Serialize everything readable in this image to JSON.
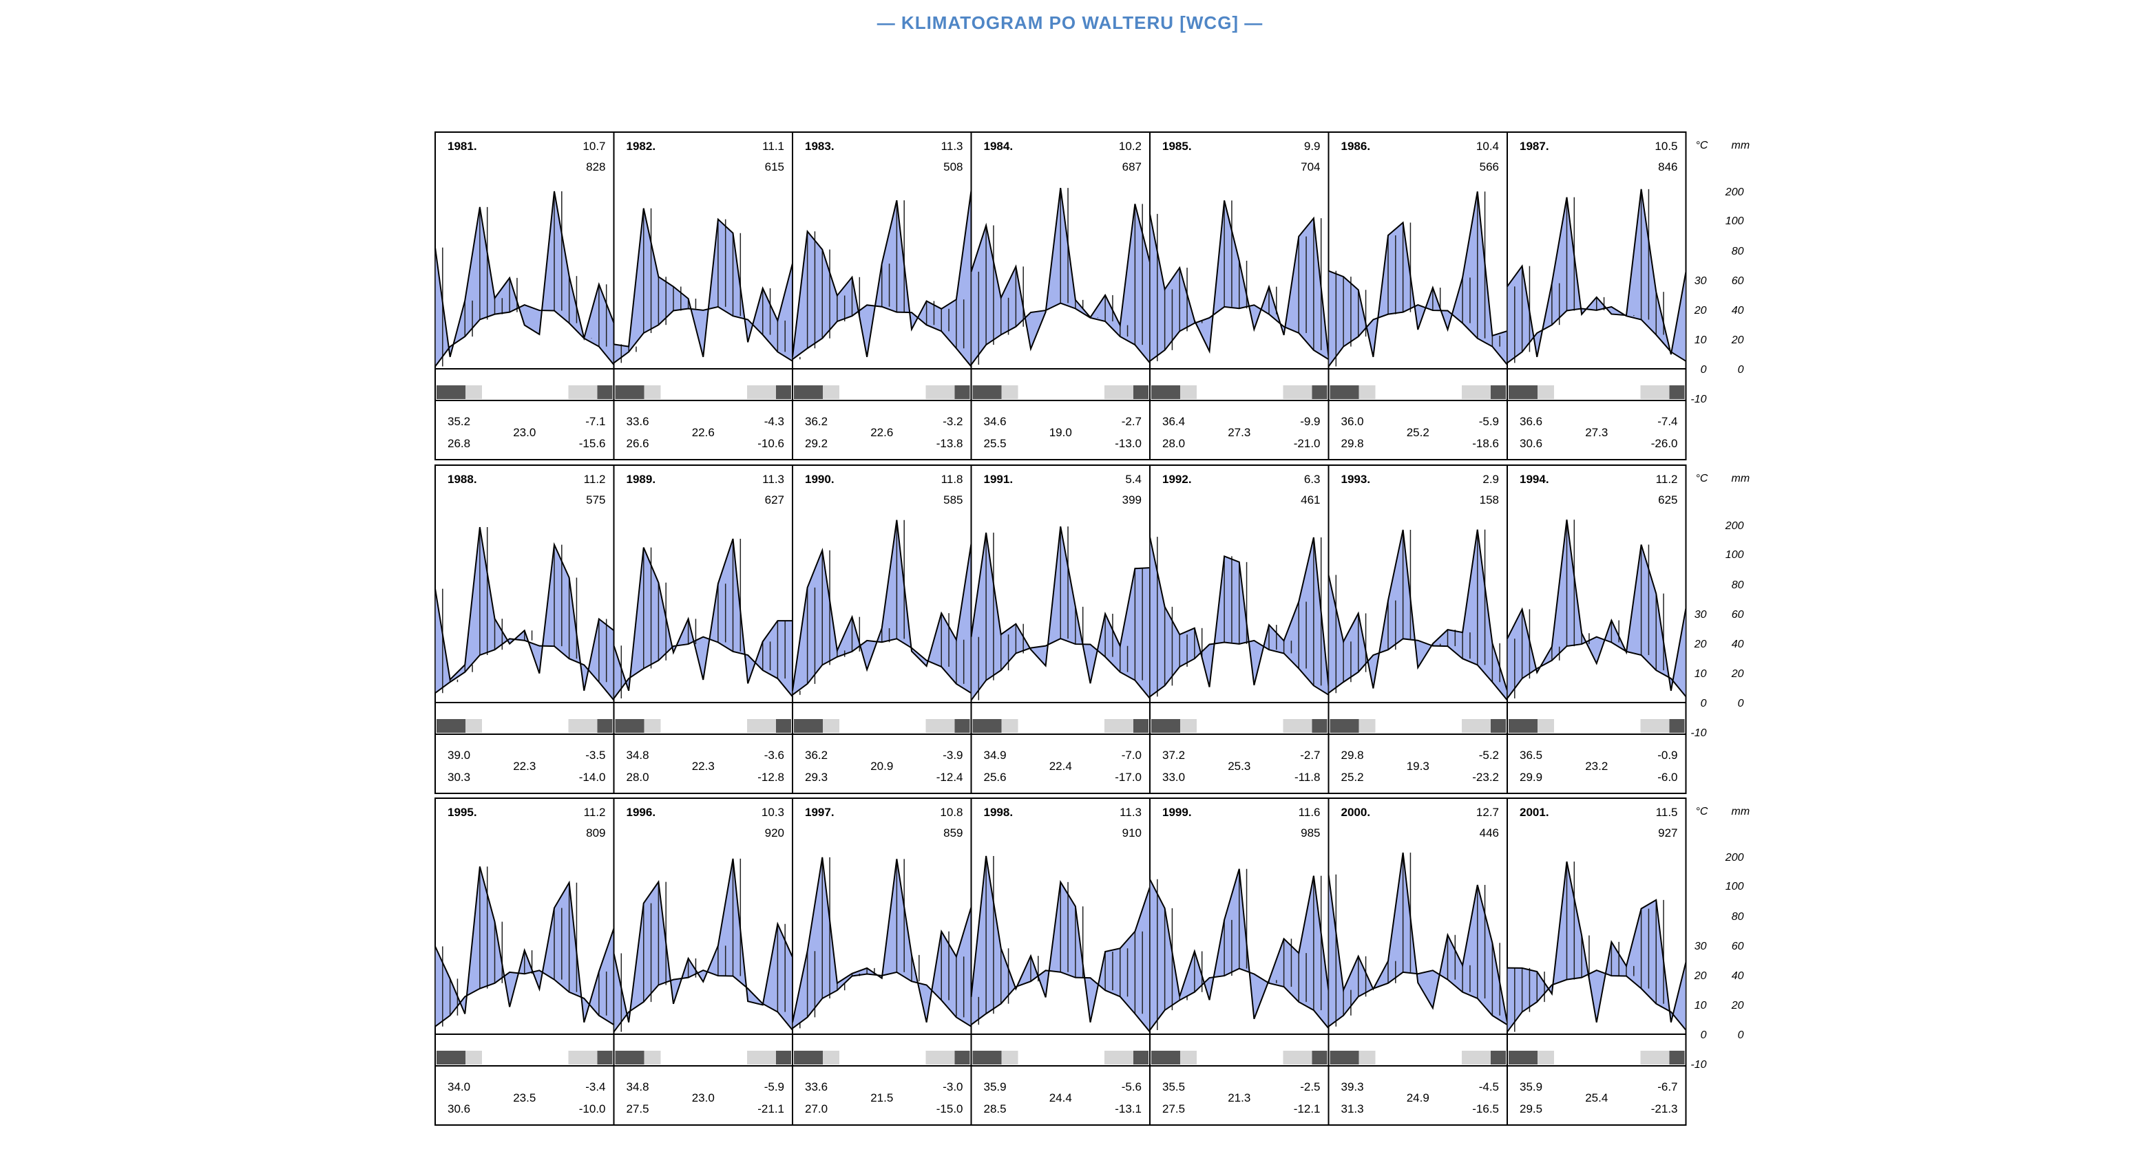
{
  "page": {
    "title": "— KLIMATOGRAM PO WALTERU [WCG] —"
  },
  "colors": {
    "humid": "#a4b3ee",
    "arid": "#ec0e0e",
    "semiarid": "#ecf03a",
    "perhumid": "#000000",
    "frost_absolute": "#555555",
    "frost_probable": "#d6d6d6",
    "title": "#4f86c6"
  },
  "scale": {
    "temp_unit": "°C",
    "precip_unit": "mm",
    "temp_ticks": [
      "30",
      "20",
      "10",
      "0",
      "-10"
    ],
    "precip_ticks": [
      "200",
      "100",
      "80",
      "60",
      "40",
      "20",
      "0"
    ]
  },
  "chart_data": {
    "type": "walter-lieth climate diagram grid",
    "years": [
      {
        "year": "1981.",
        "mean_temp": "10.7",
        "precip": "828",
        "abs_max": "35.2",
        "mean_max": "26.8",
        "temp_range": "23.0",
        "abs_min": "-7.1",
        "mean_min": "-15.6"
      },
      {
        "year": "1982.",
        "mean_temp": "11.1",
        "precip": "615",
        "abs_max": "33.6",
        "mean_max": "26.6",
        "temp_range": "22.6",
        "abs_min": "-4.3",
        "mean_min": "-10.6"
      },
      {
        "year": "1983.",
        "mean_temp": "11.3",
        "precip": "508",
        "abs_max": "36.2",
        "mean_max": "29.2",
        "temp_range": "22.6",
        "abs_min": "-3.2",
        "mean_min": "-13.8"
      },
      {
        "year": "1984.",
        "mean_temp": "10.2",
        "precip": "687",
        "abs_max": "34.6",
        "mean_max": "25.5",
        "temp_range": "19.0",
        "abs_min": "-2.7",
        "mean_min": "-13.0"
      },
      {
        "year": "1985.",
        "mean_temp": "9.9",
        "precip": "704",
        "abs_max": "36.4",
        "mean_max": "28.0",
        "temp_range": "27.3",
        "abs_min": "-9.9",
        "mean_min": "-21.0"
      },
      {
        "year": "1986.",
        "mean_temp": "10.4",
        "precip": "566",
        "abs_max": "36.0",
        "mean_max": "29.8",
        "temp_range": "25.2",
        "abs_min": "-5.9",
        "mean_min": "-18.6"
      },
      {
        "year": "1987.",
        "mean_temp": "10.5",
        "precip": "846",
        "abs_max": "36.6",
        "mean_max": "30.6",
        "temp_range": "27.3",
        "abs_min": "-7.4",
        "mean_min": "-26.0"
      },
      {
        "year": "1988.",
        "mean_temp": "11.2",
        "precip": "575",
        "abs_max": "39.0",
        "mean_max": "30.3",
        "temp_range": "22.3",
        "abs_min": "-3.5",
        "mean_min": "-14.0"
      },
      {
        "year": "1989.",
        "mean_temp": "11.3",
        "precip": "627",
        "abs_max": "34.8",
        "mean_max": "28.0",
        "temp_range": "22.3",
        "abs_min": "-3.6",
        "mean_min": "-12.8"
      },
      {
        "year": "1990.",
        "mean_temp": "11.8",
        "precip": "585",
        "abs_max": "36.2",
        "mean_max": "29.3",
        "temp_range": "20.9",
        "abs_min": "-3.9",
        "mean_min": "-12.4"
      },
      {
        "year": "1991.",
        "mean_temp": "5.4",
        "precip": "399",
        "abs_max": "34.9",
        "mean_max": "25.6",
        "temp_range": "22.4",
        "abs_min": "-7.0",
        "mean_min": "-17.0"
      },
      {
        "year": "1992.",
        "mean_temp": "6.3",
        "precip": "461",
        "abs_max": "37.2",
        "mean_max": "33.0",
        "temp_range": "25.3",
        "abs_min": "-2.7",
        "mean_min": "-11.8"
      },
      {
        "year": "1993.",
        "mean_temp": "2.9",
        "precip": "158",
        "abs_max": "29.8",
        "mean_max": "25.2",
        "temp_range": "19.3",
        "abs_min": "-5.2",
        "mean_min": "-23.2"
      },
      {
        "year": "1994.",
        "mean_temp": "11.2",
        "precip": "625",
        "abs_max": "36.5",
        "mean_max": "29.9",
        "temp_range": "23.2",
        "abs_min": "-0.9",
        "mean_min": "-6.0"
      },
      {
        "year": "1995.",
        "mean_temp": "11.2",
        "precip": "809",
        "abs_max": "34.0",
        "mean_max": "30.6",
        "temp_range": "23.5",
        "abs_min": "-3.4",
        "mean_min": "-10.0"
      },
      {
        "year": "1996.",
        "mean_temp": "10.3",
        "precip": "920",
        "abs_max": "34.8",
        "mean_max": "27.5",
        "temp_range": "23.0",
        "abs_min": "-5.9",
        "mean_min": "-21.1"
      },
      {
        "year": "1997.",
        "mean_temp": "10.8",
        "precip": "859",
        "abs_max": "33.6",
        "mean_max": "27.0",
        "temp_range": "21.5",
        "abs_min": "-3.0",
        "mean_min": "-15.0"
      },
      {
        "year": "1998.",
        "mean_temp": "11.3",
        "precip": "910",
        "abs_max": "35.9",
        "mean_max": "28.5",
        "temp_range": "24.4",
        "abs_min": "-5.6",
        "mean_min": "-13.1"
      },
      {
        "year": "1999.",
        "mean_temp": "11.6",
        "precip": "985",
        "abs_max": "35.5",
        "mean_max": "27.5",
        "temp_range": "21.3",
        "abs_min": "-2.5",
        "mean_min": "-12.1"
      },
      {
        "year": "2000.",
        "mean_temp": "12.7",
        "precip": "446",
        "abs_max": "39.3",
        "mean_max": "31.3",
        "temp_range": "24.9",
        "abs_min": "-4.5",
        "mean_min": "-16.5"
      },
      {
        "year": "2001.",
        "mean_temp": "11.5",
        "precip": "927",
        "abs_max": "35.9",
        "mean_max": "29.5",
        "temp_range": "25.4",
        "abs_min": "-6.7",
        "mean_min": "-21.3"
      }
    ]
  }
}
